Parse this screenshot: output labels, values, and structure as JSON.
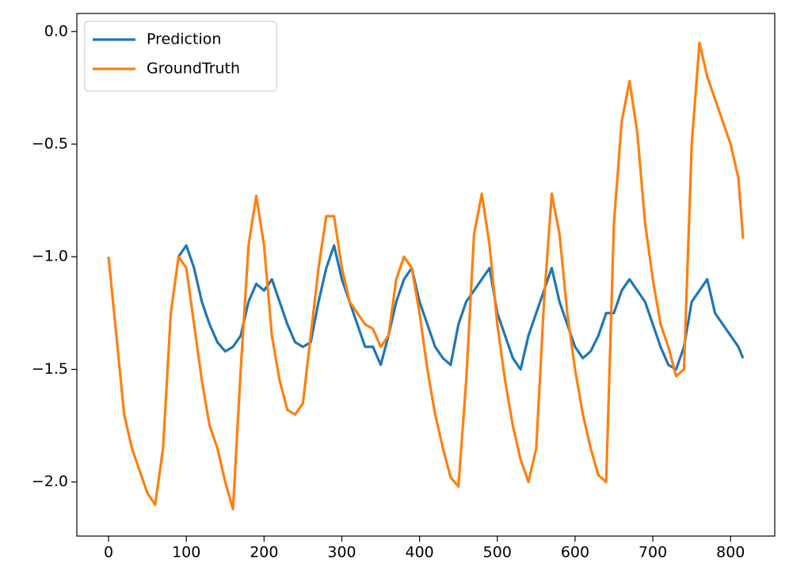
{
  "chart_data": {
    "type": "line",
    "xlim": [
      -40.8,
      856.8
    ],
    "ylim": [
      -2.24,
      0.08
    ],
    "xticks": [
      0,
      100,
      200,
      300,
      400,
      500,
      600,
      700,
      800
    ],
    "yticks": [
      {
        "value": 0,
        "label": "0.0"
      },
      {
        "value": -0.5,
        "label": "−0.5"
      },
      {
        "value": -1,
        "label": "−1.0"
      },
      {
        "value": -1.5,
        "label": "−1.5"
      },
      {
        "value": -2,
        "label": "−2.0"
      }
    ],
    "legend": "upper left",
    "grid": false,
    "series": [
      {
        "name": "Prediction",
        "color": "#1f77b4",
        "x": [
          90,
          100,
          110,
          120,
          130,
          140,
          150,
          160,
          170,
          180,
          190,
          200,
          210,
          220,
          230,
          240,
          250,
          260,
          270,
          280,
          290,
          300,
          310,
          320,
          330,
          340,
          350,
          360,
          370,
          380,
          390,
          400,
          410,
          420,
          430,
          440,
          450,
          460,
          470,
          480,
          490,
          500,
          510,
          520,
          530,
          540,
          550,
          560,
          570,
          580,
          590,
          600,
          610,
          620,
          630,
          640,
          650,
          660,
          670,
          680,
          690,
          700,
          710,
          720,
          730,
          740,
          750,
          760,
          770,
          780,
          790,
          800,
          810,
          816
        ],
        "values": [
          -1.0,
          -0.95,
          -1.05,
          -1.2,
          -1.3,
          -1.38,
          -1.42,
          -1.4,
          -1.35,
          -1.2,
          -1.12,
          -1.15,
          -1.1,
          -1.2,
          -1.3,
          -1.38,
          -1.4,
          -1.38,
          -1.2,
          -1.05,
          -0.95,
          -1.1,
          -1.2,
          -1.3,
          -1.4,
          -1.4,
          -1.48,
          -1.35,
          -1.2,
          -1.1,
          -1.05,
          -1.2,
          -1.3,
          -1.4,
          -1.45,
          -1.48,
          -1.3,
          -1.2,
          -1.15,
          -1.1,
          -1.05,
          -1.25,
          -1.35,
          -1.45,
          -1.5,
          -1.35,
          -1.25,
          -1.15,
          -1.05,
          -1.2,
          -1.3,
          -1.4,
          -1.45,
          -1.42,
          -1.35,
          -1.25,
          -1.25,
          -1.15,
          -1.1,
          -1.15,
          -1.2,
          -1.3,
          -1.4,
          -1.48,
          -1.5,
          -1.4,
          -1.2,
          -1.15,
          -1.1,
          -1.25,
          -1.3,
          -1.35,
          -1.4,
          -1.45
        ]
      },
      {
        "name": "GroundTruth",
        "color": "#ff7f0e",
        "x": [
          0,
          10,
          20,
          30,
          40,
          50,
          60,
          70,
          80,
          90,
          100,
          110,
          120,
          130,
          140,
          150,
          160,
          170,
          180,
          190,
          200,
          210,
          220,
          230,
          240,
          250,
          260,
          270,
          280,
          290,
          300,
          310,
          320,
          330,
          340,
          350,
          360,
          370,
          380,
          390,
          400,
          410,
          420,
          430,
          440,
          450,
          460,
          470,
          480,
          490,
          500,
          510,
          520,
          530,
          540,
          550,
          560,
          570,
          580,
          590,
          600,
          610,
          620,
          630,
          640,
          650,
          660,
          670,
          680,
          690,
          700,
          710,
          720,
          730,
          740,
          750,
          760,
          770,
          780,
          790,
          800,
          810,
          816
        ],
        "values": [
          -1.0,
          -1.35,
          -1.7,
          -1.85,
          -1.95,
          -2.05,
          -2.1,
          -1.85,
          -1.25,
          -1.0,
          -1.05,
          -1.3,
          -1.55,
          -1.75,
          -1.85,
          -2.0,
          -2.12,
          -1.5,
          -0.95,
          -0.73,
          -0.95,
          -1.35,
          -1.55,
          -1.68,
          -1.7,
          -1.65,
          -1.35,
          -1.05,
          -0.82,
          -0.82,
          -1.05,
          -1.2,
          -1.25,
          -1.3,
          -1.32,
          -1.4,
          -1.35,
          -1.1,
          -1.0,
          -1.05,
          -1.25,
          -1.5,
          -1.7,
          -1.85,
          -1.98,
          -2.02,
          -1.55,
          -0.9,
          -0.72,
          -0.95,
          -1.3,
          -1.55,
          -1.75,
          -1.9,
          -2.0,
          -1.85,
          -1.2,
          -0.72,
          -0.9,
          -1.25,
          -1.5,
          -1.7,
          -1.85,
          -1.97,
          -2.0,
          -0.85,
          -0.4,
          -0.22,
          -0.45,
          -0.85,
          -1.1,
          -1.3,
          -1.4,
          -1.53,
          -1.5,
          -0.5,
          -0.05,
          -0.2,
          -0.3,
          -0.4,
          -0.5,
          -0.65,
          -0.92
        ]
      }
    ]
  }
}
